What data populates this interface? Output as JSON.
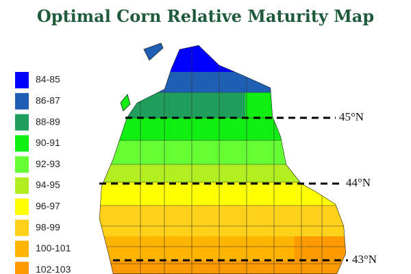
{
  "title": "Optimal Corn Relative Maturity Map",
  "legend": [
    {
      "label": "84-85",
      "color": "#0000ff"
    },
    {
      "label": "86-87",
      "color": "#1e5fb4"
    },
    {
      "label": "88-89",
      "color": "#1f9e5c"
    },
    {
      "label": "90-91",
      "color": "#11ee11"
    },
    {
      "label": "92-93",
      "color": "#66ff33"
    },
    {
      "label": "94-95",
      "color": "#b2ee22"
    },
    {
      "label": "96-97",
      "color": "#ffff00"
    },
    {
      "label": "98-99",
      "color": "#ffd11a"
    },
    {
      "label": "100-101",
      "color": "#ffb400"
    },
    {
      "label": "102-103",
      "color": "#ff9a00"
    }
  ],
  "latitudes": [
    "45°N",
    "44°N",
    "43°N"
  ]
}
